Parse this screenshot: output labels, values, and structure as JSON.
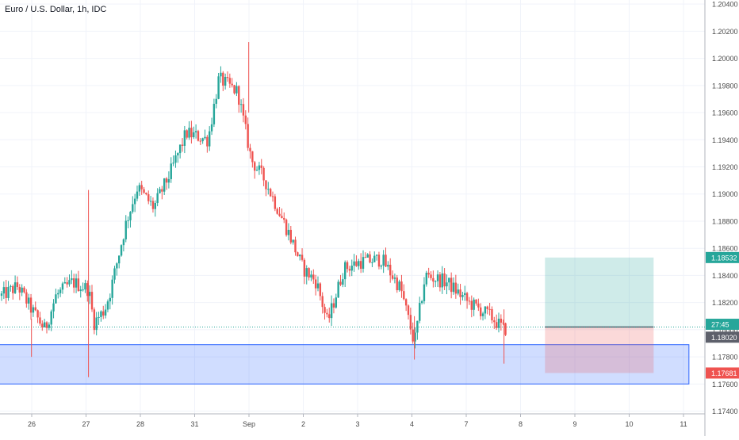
{
  "header": {
    "title": "Euro / U.S. Dollar, 1h, IDC"
  },
  "colors": {
    "up": "#26a69a",
    "down": "#ef5350",
    "grid": "#f0f3fa",
    "axis_text": "#4a4a4a",
    "current_price": "#26a69a",
    "entry": "#787b86",
    "stop": "#ef5350",
    "target": "#26a69a",
    "support_zone": "#2962ff"
  },
  "price_tags": {
    "target": "1.18532",
    "countdown": "27:45",
    "entry": "1.18020",
    "stop": "1.17681"
  },
  "chart_data": {
    "type": "candlestick",
    "title": "Euro / U.S. Dollar, 1h, IDC",
    "x_ticks": [
      "26",
      "27",
      "28",
      "31",
      "Sep",
      "2",
      "3",
      "4",
      "7",
      "8",
      "9",
      "10",
      "11"
    ],
    "y_ticks": [
      "1.20400",
      "1.20200",
      "1.20000",
      "1.19800",
      "1.19600",
      "1.19400",
      "1.19200",
      "1.19000",
      "1.18800",
      "1.18600",
      "1.18400",
      "1.18200",
      "1.18000",
      "1.17800",
      "1.17600",
      "1.17400"
    ],
    "ylim": [
      1.1738,
      1.2043
    ],
    "grid": true,
    "trend_path": [
      {
        "day": 0.0,
        "price": 1.1825
      },
      {
        "day": 0.3,
        "price": 1.1832
      },
      {
        "day": 0.55,
        "price": 1.1815
      },
      {
        "day": 0.8,
        "price": 1.18
      },
      {
        "day": 1.0,
        "price": 1.1825
      },
      {
        "day": 1.3,
        "price": 1.1835
      },
      {
        "day": 1.6,
        "price": 1.183
      },
      {
        "day": 1.7,
        "price": 1.1805
      },
      {
        "day": 1.9,
        "price": 1.1815
      },
      {
        "day": 2.0,
        "price": 1.1828
      },
      {
        "day": 2.3,
        "price": 1.188
      },
      {
        "day": 2.5,
        "price": 1.1905
      },
      {
        "day": 2.8,
        "price": 1.189
      },
      {
        "day": 3.1,
        "price": 1.1915
      },
      {
        "day": 3.4,
        "price": 1.1945
      },
      {
        "day": 3.8,
        "price": 1.194
      },
      {
        "day": 4.0,
        "price": 1.1985
      },
      {
        "day": 4.35,
        "price": 1.1975
      },
      {
        "day": 4.6,
        "price": 1.1925
      },
      {
        "day": 4.85,
        "price": 1.191
      },
      {
        "day": 5.3,
        "price": 1.187
      },
      {
        "day": 5.55,
        "price": 1.1845
      },
      {
        "day": 5.8,
        "price": 1.1835
      },
      {
        "day": 6.0,
        "price": 1.1805
      },
      {
        "day": 6.3,
        "price": 1.1845
      },
      {
        "day": 6.6,
        "price": 1.185
      },
      {
        "day": 7.0,
        "price": 1.1852
      },
      {
        "day": 7.35,
        "price": 1.183
      },
      {
        "day": 7.6,
        "price": 1.179
      },
      {
        "day": 7.8,
        "price": 1.184
      },
      {
        "day": 8.2,
        "price": 1.1835
      },
      {
        "day": 8.6,
        "price": 1.182
      },
      {
        "day": 9.0,
        "price": 1.181
      },
      {
        "day": 9.25,
        "price": 1.18
      },
      {
        "day": 9.33,
        "price": 1.1802
      }
    ],
    "support_zone": {
      "day_start": -0.95,
      "day_end": 12.1,
      "price_top": 1.1789,
      "price_bottom": 1.176
    },
    "position": {
      "day_start": 9.45,
      "day_end": 11.45,
      "entry": 1.1802,
      "target": 1.18532,
      "stop": 1.17681
    },
    "current_price": 1.1802
  }
}
